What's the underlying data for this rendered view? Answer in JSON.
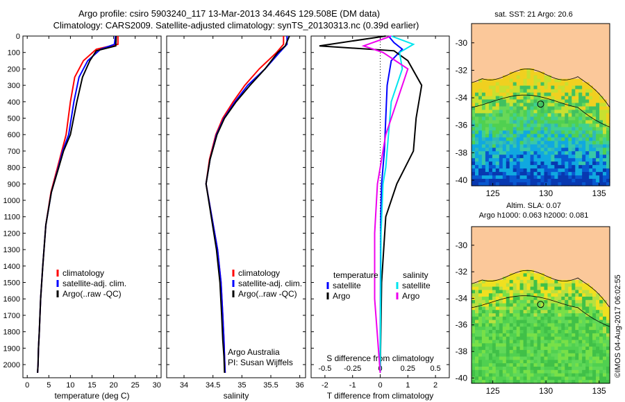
{
  "title_line1": "Argo profile: csiro 5903240_117 13-Mar-2013 34.464S 129.508E (DM data)",
  "title_line2": "Climatology: CARS2009. Satellite-adjusted climatology: synTS_20130313.nc (0.39d earlier)",
  "colors": {
    "climatology": "#ff0000",
    "satellite": "#0000ff",
    "argo": "#000000",
    "s_satellite": "#00e5ee",
    "s_argo": "#ee00ee",
    "land": "#fbc89a"
  },
  "chart_data": [
    {
      "type": "line",
      "name": "temperature-panel",
      "xlabel": "temperature (deg C)",
      "ylabel": "depth",
      "xlim": [
        -1,
        31
      ],
      "ylim": [
        2080,
        0
      ],
      "xticks": [
        0,
        5,
        10,
        15,
        20,
        25,
        30
      ],
      "yticks": [
        0,
        100,
        200,
        300,
        400,
        500,
        600,
        700,
        800,
        900,
        1000,
        1100,
        1200,
        1300,
        1400,
        1500,
        1600,
        1700,
        1800,
        1900,
        2000
      ],
      "legend": [
        "climatology",
        "satellite-adj. clim.",
        "Argo(..raw -QC)"
      ],
      "series": [
        {
          "name": "climatology",
          "color": "#ff0000",
          "x": [
            21,
            21,
            16,
            13,
            11,
            10,
            9,
            8,
            7,
            5.5,
            4.3,
            3.6,
            3.1,
            2.8,
            2.6,
            2.5,
            2.4
          ],
          "y": [
            0,
            50,
            80,
            150,
            250,
            400,
            600,
            700,
            800,
            950,
            1150,
            1400,
            1600,
            1800,
            1900,
            2000,
            2050
          ]
        },
        {
          "name": "satellite-adj. clim.",
          "color": "#0000ff",
          "x": [
            20.4,
            20.2,
            17,
            14,
            12,
            10.8,
            9.6,
            8.2,
            7.2,
            5.6,
            4.3,
            3.6,
            3.1,
            2.8,
            2.6,
            2.5,
            2.4
          ],
          "y": [
            0,
            50,
            80,
            150,
            250,
            400,
            600,
            700,
            800,
            950,
            1150,
            1400,
            1600,
            1800,
            1900,
            2000,
            2050
          ]
        },
        {
          "name": "Argo(..raw -QC)",
          "color": "#000000",
          "x": [
            20.6,
            20.5,
            16,
            14.5,
            12.8,
            11.5,
            10,
            8.4,
            7.3,
            5.6,
            4.3,
            3.6,
            3.1,
            2.8,
            2.6,
            2.5,
            2.4
          ],
          "y": [
            0,
            60,
            90,
            150,
            250,
            400,
            600,
            700,
            800,
            950,
            1150,
            1400,
            1600,
            1800,
            1900,
            2000,
            2050
          ]
        }
      ]
    },
    {
      "type": "line",
      "name": "salinity-panel",
      "xlabel": "salinity",
      "xlim": [
        33.7,
        36.1
      ],
      "ylim": [
        2080,
        0
      ],
      "xticks": [
        34,
        34.5,
        35,
        35.5,
        36
      ],
      "legend": [
        "climatology",
        "satellite-adj. clim.",
        "Argo(..raw -QC)"
      ],
      "annotations": [
        "Argo Australia",
        "PI: Susan Wijffels"
      ],
      "series": [
        {
          "name": "climatology",
          "color": "#ff0000",
          "x": [
            35.72,
            35.72,
            35.6,
            35.3,
            35.05,
            34.85,
            34.67,
            34.55,
            34.44,
            34.38,
            34.48,
            34.58,
            34.64,
            34.67,
            34.69,
            34.7,
            34.71
          ],
          "y": [
            0,
            50,
            100,
            200,
            300,
            400,
            500,
            600,
            750,
            900,
            1100,
            1300,
            1500,
            1700,
            1850,
            1950,
            2050
          ]
        },
        {
          "name": "satellite-adj. clim.",
          "color": "#0000ff",
          "x": [
            35.78,
            35.78,
            35.65,
            35.4,
            35.1,
            34.88,
            34.69,
            34.56,
            34.45,
            34.38,
            34.48,
            34.58,
            34.64,
            34.67,
            34.69,
            34.7,
            34.71
          ],
          "y": [
            0,
            50,
            100,
            200,
            300,
            400,
            500,
            600,
            750,
            900,
            1100,
            1300,
            1500,
            1700,
            1850,
            1950,
            2050
          ]
        },
        {
          "name": "Argo(..raw -QC)",
          "color": "#000000",
          "x": [
            35.82,
            35.75,
            35.62,
            35.4,
            35.14,
            34.9,
            34.7,
            34.57,
            34.45,
            34.38,
            34.47,
            34.56,
            34.62,
            34.65,
            34.67,
            34.69,
            34.7
          ],
          "y": [
            0,
            60,
            100,
            200,
            300,
            400,
            500,
            600,
            750,
            900,
            1100,
            1300,
            1500,
            1700,
            1850,
            1950,
            2050
          ]
        }
      ]
    },
    {
      "type": "line",
      "name": "difference-panel",
      "xlabel": "T difference from climatology",
      "xlabel_top": "S difference from climatology",
      "xlim": [
        -2.5,
        2.5
      ],
      "ylim": [
        2080,
        0
      ],
      "xticks": [
        -2,
        -1,
        0,
        1,
        2
      ],
      "xtick_labels_top": [
        "-0.5",
        "-0.25",
        "0",
        "0.25",
        "0.5"
      ],
      "legend_t_title": "temperature",
      "legend_s_title": "salinity",
      "legend": [
        "satellite",
        "Argo",
        "satellite",
        "Argo"
      ],
      "series": [
        {
          "name": "T satellite",
          "color": "#0000ff",
          "x": [
            0.3,
            0.5,
            0.8,
            0.4,
            0.25,
            0.2,
            0.15,
            0.05,
            0.02,
            0.01,
            0
          ],
          "y": [
            0,
            40,
            80,
            150,
            300,
            500,
            700,
            900,
            1100,
            1500,
            2050
          ]
        },
        {
          "name": "T Argo",
          "color": "#000000",
          "x": [
            0.2,
            -2.2,
            0.5,
            1,
            1.5,
            1.3,
            1.2,
            0.6,
            0.2,
            0.05,
            0
          ],
          "y": [
            0,
            60,
            90,
            150,
            300,
            500,
            700,
            900,
            1100,
            1500,
            2050
          ]
        },
        {
          "name": "S satellite",
          "color": "#00e5ee",
          "x": [
            0.4,
            1.2,
            0.7,
            0.8,
            0.4,
            0.3,
            0.2,
            0.1,
            0.03,
            0
          ],
          "y": [
            0,
            50,
            100,
            200,
            400,
            600,
            800,
            900,
            1200,
            2050
          ]
        },
        {
          "name": "S Argo",
          "color": "#ee00ee",
          "x": [
            0.4,
            -0.6,
            0.1,
            1,
            0.6,
            0.2,
            0,
            -0.1,
            -0.2,
            -0.2,
            0
          ],
          "y": [
            0,
            60,
            100,
            200,
            400,
            600,
            800,
            900,
            1200,
            1600,
            2050
          ]
        }
      ]
    },
    {
      "type": "heatmap",
      "name": "sst-map",
      "title": "sat. SST: 21  Argo: 20.6",
      "xlim": [
        123,
        136
      ],
      "ylim": [
        -40.4,
        -28.6
      ],
      "xticks": [
        125,
        130,
        135
      ],
      "yticks": [
        -30,
        -32,
        -34,
        -36,
        -38,
        -40
      ],
      "marker": {
        "lon": 129.5,
        "lat": -34.46
      }
    },
    {
      "type": "heatmap",
      "name": "sla-map",
      "title_line1": "Altim. SLA: 0.07",
      "title_line2": "Argo h1000: 0.063  h2000: 0.081",
      "xlim": [
        123,
        136
      ],
      "ylim": [
        -40.4,
        -28.6
      ],
      "xticks": [
        125,
        130,
        135
      ],
      "yticks": [
        -30,
        -32,
        -34,
        -36,
        -38,
        -40
      ],
      "marker": {
        "lon": 129.5,
        "lat": -34.46
      }
    }
  ],
  "footer_stamp": "©IMOS 04-Aug-2017 06:02:55"
}
